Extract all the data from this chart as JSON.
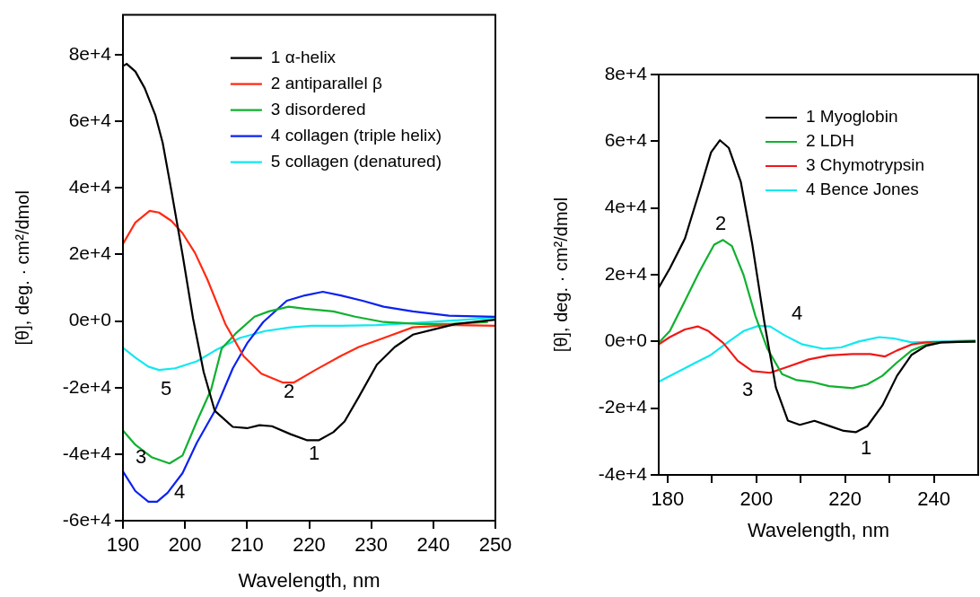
{
  "chart_data": [
    {
      "type": "line",
      "xlabel": "Wavelength, nm",
      "ylabel": "[θ], deg. · cm²/dmol",
      "xlim": [
        190,
        250
      ],
      "xticks": [
        190,
        200,
        210,
        220,
        230,
        240,
        250
      ],
      "ylim": [
        -60000,
        92000
      ],
      "yticks": [
        {
          "value": -60000,
          "label": "-6e+4"
        },
        {
          "value": -40000,
          "label": "-4e+4"
        },
        {
          "value": -20000,
          "label": "-2e+4"
        },
        {
          "value": 0,
          "label": "0e+0"
        },
        {
          "value": 20000,
          "label": "2e+4"
        },
        {
          "value": 40000,
          "label": "4e+4"
        },
        {
          "value": 60000,
          "label": "6e+4"
        },
        {
          "value": 80000,
          "label": "8e+4"
        }
      ],
      "grid": false,
      "legend": "top right",
      "marker": "none",
      "line_style": "solid",
      "series": [
        {
          "name": "1 α-helix",
          "color": "#000000",
          "x": [
            190,
            190.6,
            192,
            193.5,
            195.2,
            196.4,
            197.8,
            199.6,
            201.3,
            203,
            204.8,
            207.7,
            210,
            212,
            214,
            217,
            219.6,
            221.6,
            223.9,
            225.7,
            228,
            230.9,
            233.8,
            236.7,
            240.1,
            243.6,
            250
          ],
          "values": [
            76600,
            77300,
            75000,
            70000,
            62000,
            53600,
            39200,
            20000,
            700,
            -15300,
            -27000,
            -31800,
            -32200,
            -31300,
            -31600,
            -34000,
            -35800,
            -35800,
            -33400,
            -30200,
            -22800,
            -13100,
            -7800,
            -4100,
            -2500,
            -900,
            400
          ]
        },
        {
          "name": "2 antiparallel β",
          "color": "#ff2a12",
          "x": [
            190,
            192,
            194.3,
            195.8,
            197.8,
            199.6,
            201.6,
            203.6,
            206.5,
            209.4,
            212.3,
            215.8,
            217.5,
            221,
            225.1,
            228,
            232,
            236.7,
            242.5,
            250
          ],
          "values": [
            23200,
            29600,
            33100,
            32600,
            30100,
            26400,
            20500,
            12500,
            -900,
            -10500,
            -15800,
            -18500,
            -18500,
            -14700,
            -10500,
            -7800,
            -5100,
            -1900,
            -1200,
            -1400
          ]
        },
        {
          "name": "3 disordered",
          "color": "#10b030",
          "x": [
            190,
            192,
            194.6,
            197.5,
            199.6,
            201.9,
            204.2,
            205.9,
            208.3,
            211.2,
            213.5,
            216.7,
            219.3,
            223.9,
            227.4,
            232,
            237.8,
            242.5,
            248.8
          ],
          "values": [
            -32900,
            -37200,
            -40900,
            -42800,
            -40400,
            -30200,
            -20600,
            -8300,
            -3500,
            1300,
            2900,
            4300,
            3700,
            2900,
            1300,
            -300,
            -900,
            -900,
            -300
          ]
        },
        {
          "name": "4 collagen (triple helix)",
          "color": "#0a22f0",
          "x": [
            190,
            192,
            194.1,
            195.5,
            197.2,
            199.6,
            201.9,
            204.8,
            207.7,
            210,
            212.6,
            216.4,
            219.3,
            222.2,
            225.1,
            228.6,
            232,
            236.7,
            242.5,
            250
          ],
          "values": [
            -45200,
            -51100,
            -54300,
            -54300,
            -51600,
            -45700,
            -36600,
            -27000,
            -14200,
            -6700,
            -300,
            6100,
            7700,
            8800,
            7700,
            6100,
            4300,
            2900,
            1600,
            1300
          ]
        },
        {
          "name": "5 collagen (denatured)",
          "color": "#10e8f0",
          "x": [
            190,
            192,
            194.1,
            195.8,
            198.4,
            201.9,
            204.8,
            208.8,
            212.9,
            217,
            220.4,
            225.1,
            230.9,
            239.6,
            250
          ],
          "values": [
            -8000,
            -11000,
            -13700,
            -14700,
            -14200,
            -12100,
            -8900,
            -5100,
            -3000,
            -1900,
            -1400,
            -1400,
            -1200,
            -300,
            1000
          ]
        }
      ],
      "annotations": [
        "1",
        "2",
        "3",
        "4",
        "5"
      ]
    },
    {
      "type": "line",
      "xlabel": "Wavelength, nm",
      "ylabel": "[θ], deg. · cm²/dmol",
      "xlim": [
        178,
        250
      ],
      "xticks": [
        180,
        {
          "value": 190,
          "label": null
        },
        200,
        {
          "value": 210,
          "label": null
        },
        220,
        {
          "value": 230,
          "label": null
        },
        240
      ],
      "ylim": [
        -40000,
        80000
      ],
      "yticks": [
        {
          "value": -40000,
          "label": "-4e+4"
        },
        {
          "value": -20000,
          "label": "-2e+4"
        },
        {
          "value": 0,
          "label": "0e+0"
        },
        {
          "value": 20000,
          "label": "2e+4"
        },
        {
          "value": 40000,
          "label": "4e+4"
        },
        {
          "value": 60000,
          "label": "6e+4"
        },
        {
          "value": 80000,
          "label": "8e+4"
        }
      ],
      "grid": false,
      "legend": "top right",
      "marker": "none",
      "line_style": "solid",
      "series": [
        {
          "name": "1 Myoglobin",
          "color": "#000000",
          "x": [
            178,
            180.5,
            183.9,
            187.2,
            189.8,
            191.8,
            193.8,
            196.5,
            199.1,
            201.8,
            204.4,
            207.1,
            209.8,
            213.1,
            216.4,
            219.7,
            222.4,
            225,
            228.4,
            231.7,
            235,
            238.3,
            241.7,
            249.4
          ],
          "values": [
            16100,
            21900,
            30800,
            45100,
            56700,
            60300,
            58000,
            47800,
            29000,
            5800,
            -13800,
            -23700,
            -25000,
            -23800,
            -25300,
            -26800,
            -27200,
            -25400,
            -19200,
            -10300,
            -4000,
            -1300,
            -300,
            0
          ]
        },
        {
          "name": "2 LDH",
          "color": "#10b030",
          "x": [
            178,
            180.5,
            183.9,
            187.2,
            190.5,
            192.5,
            194.5,
            197.1,
            199.8,
            202.5,
            205.8,
            209.1,
            212.4,
            216.4,
            221.7,
            225,
            228.4,
            231.7,
            235,
            238.3,
            241.7,
            249.4
          ],
          "values": [
            -400,
            3100,
            12100,
            21000,
            29000,
            30400,
            28600,
            20000,
            7600,
            -2200,
            -9800,
            -11600,
            -12100,
            -13400,
            -14000,
            -12900,
            -10300,
            -6300,
            -2700,
            -900,
            -300,
            0
          ]
        },
        {
          "name": "3 Chymotrypsin",
          "color": "#f01818",
          "x": [
            178,
            180.5,
            183.9,
            186.8,
            189.2,
            192.5,
            195.8,
            199.1,
            203.1,
            207.1,
            211.8,
            216.4,
            221.7,
            225.7,
            229,
            231.7,
            235,
            238.3,
            249.4
          ],
          "values": [
            -900,
            1300,
            3600,
            4500,
            3100,
            -400,
            -5800,
            -8900,
            -9400,
            -7600,
            -5400,
            -4200,
            -3800,
            -3800,
            -4500,
            -2700,
            -900,
            -300,
            0
          ]
        },
        {
          "name": "4 Bence Jones",
          "color": "#10e8f0",
          "x": [
            178,
            181.9,
            185.8,
            189.8,
            193.8,
            197.1,
            200.5,
            203.1,
            206.4,
            210.4,
            215.1,
            219.1,
            223.1,
            227.7,
            231,
            235,
            249.4
          ],
          "values": [
            -12100,
            -9400,
            -6700,
            -4000,
            0,
            3100,
            4700,
            4500,
            1800,
            -900,
            -2200,
            -1800,
            0,
            1300,
            900,
            -300,
            300
          ]
        }
      ],
      "annotations": [
        "1",
        "2",
        "3",
        "4"
      ]
    }
  ]
}
